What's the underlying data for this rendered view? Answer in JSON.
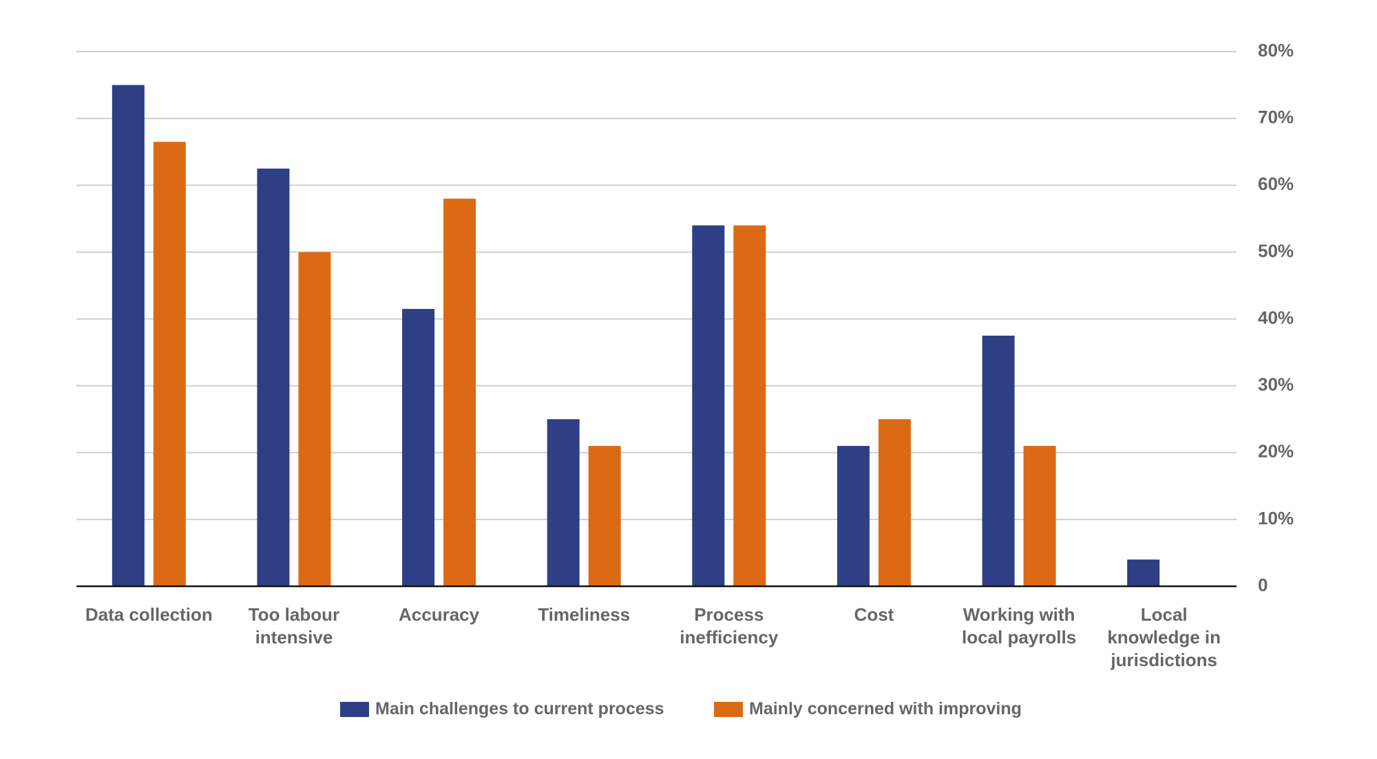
{
  "chart_data": {
    "type": "bar",
    "categories": [
      "Data collection",
      "Too labour intensive",
      "Accuracy",
      "Timeliness",
      "Process inefficiency",
      "Cost",
      "Working with local payrolls",
      "Local knowledge in jurisdictions"
    ],
    "series": [
      {
        "name": "Main challenges to current process",
        "color": "#2e3f85",
        "values": [
          75,
          62.5,
          41.5,
          25,
          54,
          21,
          37.5,
          4
        ]
      },
      {
        "name": "Mainly concerned with improving",
        "color": "#dc6a14",
        "values": [
          66.5,
          50,
          58,
          21,
          54,
          25,
          21,
          0
        ]
      }
    ],
    "ylim": [
      0,
      80
    ],
    "yticks": [
      0,
      {
        "value": 10,
        "label": "10%"
      },
      {
        "value": 20,
        "label": "20%"
      },
      {
        "value": 30,
        "label": "30%"
      },
      {
        "value": 40,
        "label": "40%"
      },
      {
        "value": 50,
        "label": "50%"
      },
      {
        "value": 60,
        "label": "60%"
      },
      {
        "value": 70,
        "label": "70%"
      },
      {
        "value": 80,
        "label": "80%"
      }
    ],
    "grid": true,
    "legend": "bottom"
  }
}
